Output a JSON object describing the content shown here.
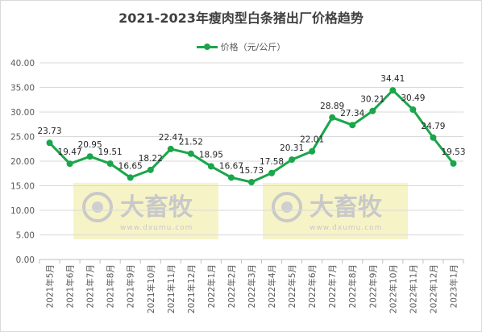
{
  "colors": {
    "line": "#1aa64a",
    "grid": "#d9d9d9",
    "axis_text": "#595959",
    "title": "#404040",
    "watermark_bg": "#f3f0b4"
  },
  "watermark": {
    "brand": "大畜牧",
    "site": "www.dxumu.com"
  },
  "chart_data": {
    "type": "line",
    "title": "2021-2023年瘦肉型白条猪出厂价格趋势",
    "categories": [
      "2021年5月",
      "2021年6月",
      "2021年7月",
      "2021年8月",
      "2021年9月",
      "2021年10月",
      "2021年11月",
      "2021年12月",
      "2022年1月",
      "2022年2月",
      "2022年3月",
      "2022年4月",
      "2022年5月",
      "2022年6月",
      "2022年7月",
      "2022年8月",
      "2022年9月",
      "2022年10月",
      "2022年11月",
      "2022年12月",
      "2023年1月"
    ],
    "series": [
      {
        "name": "价格（元/公斤）",
        "values": [
          23.73,
          19.47,
          20.95,
          19.51,
          16.65,
          18.22,
          22.47,
          21.52,
          18.95,
          16.67,
          15.73,
          17.58,
          20.31,
          22.01,
          28.89,
          27.34,
          30.21,
          34.41,
          30.49,
          24.79,
          19.53
        ]
      }
    ],
    "ylim": [
      0,
      40
    ],
    "yticks": [
      "0.00",
      "5.00",
      "10.00",
      "15.00",
      "20.00",
      "25.00",
      "30.00",
      "35.00",
      "40.00"
    ],
    "grid": true,
    "legend": "top"
  }
}
